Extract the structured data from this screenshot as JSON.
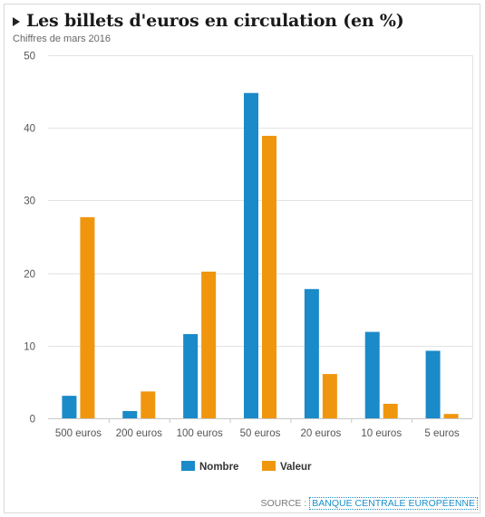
{
  "header": {
    "title": "Les billets d'euros en circulation (en %)",
    "subtitle": "Chiffres de mars 2016"
  },
  "footer": {
    "source_label": "SOURCE :",
    "source_link": "BANQUE CENTRALE EUROPÉENNE"
  },
  "colors": {
    "nombre": "#1a8ac8",
    "valeur": "#f0960e",
    "grid": "#e3e3e3",
    "axis_text": "#555555"
  },
  "chart_data": {
    "type": "bar",
    "title": "Les billets d'euros en circulation (en %)",
    "subtitle": "Chiffres de mars 2016",
    "xlabel": "",
    "ylabel": "",
    "ylim": [
      0,
      50
    ],
    "yticks": [
      0,
      10,
      20,
      30,
      40,
      50
    ],
    "grid": true,
    "legend_position": "bottom",
    "categories": [
      "500 euros",
      "200 euros",
      "100 euros",
      "50 euros",
      "20 euros",
      "10 euros",
      "5 euros"
    ],
    "series": [
      {
        "name": "Nombre",
        "color": "#1a8ac8",
        "values": [
          3.1,
          1.0,
          11.6,
          44.8,
          17.8,
          11.9,
          9.3
        ]
      },
      {
        "name": "Valeur",
        "color": "#f0960e",
        "values": [
          27.7,
          3.7,
          20.2,
          38.9,
          6.1,
          2.0,
          0.6
        ]
      }
    ]
  }
}
